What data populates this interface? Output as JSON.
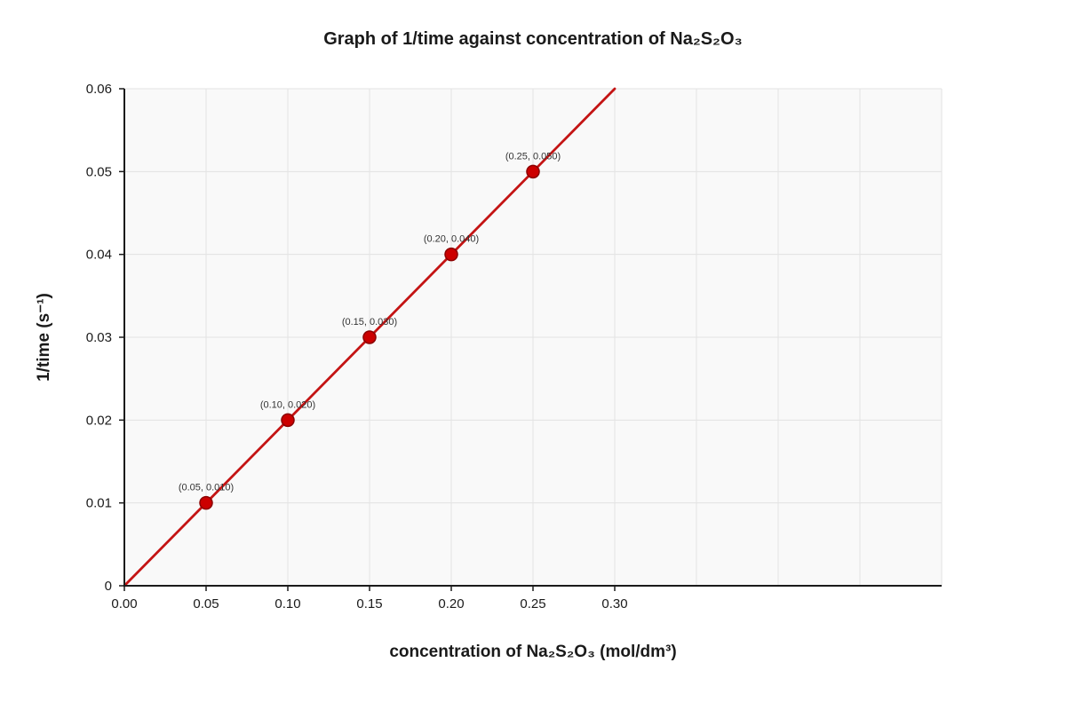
{
  "chart_data": {
    "type": "scatter",
    "title": "Graph of 1/time against concentration of Na₂S₂O₃",
    "xlabel": "concentration of Na₂S₂O₃ (mol/dm³)",
    "ylabel": "1/time (s⁻¹)",
    "xlim": [
      0,
      0.5
    ],
    "ylim": [
      0,
      0.06
    ],
    "x_ticks": [
      {
        "value": 0.0,
        "label": "0.00"
      },
      {
        "value": 0.05,
        "label": "0.05"
      },
      {
        "value": 0.1,
        "label": "0.10"
      },
      {
        "value": 0.15,
        "label": "0.15"
      },
      {
        "value": 0.2,
        "label": "0.20"
      },
      {
        "value": 0.25,
        "label": "0.25"
      },
      {
        "value": 0.3,
        "label": "0.30"
      }
    ],
    "x_gridlines": [
      0.05,
      0.1,
      0.15,
      0.2,
      0.25,
      0.3,
      0.35,
      0.4,
      0.45,
      0.5
    ],
    "y_ticks": [
      {
        "value": 0,
        "label": "0"
      },
      {
        "value": 0.01,
        "label": "0.01"
      },
      {
        "value": 0.02,
        "label": "0.02"
      },
      {
        "value": 0.03,
        "label": "0.03"
      },
      {
        "value": 0.04,
        "label": "0.04"
      },
      {
        "value": 0.05,
        "label": "0.05"
      },
      {
        "value": 0.06,
        "label": "0.06"
      }
    ],
    "grid": true,
    "points": [
      {
        "x": 0.05,
        "y": 0.01,
        "label": "(0.05, 0.010)"
      },
      {
        "x": 0.1,
        "y": 0.02,
        "label": "(0.10, 0.020)"
      },
      {
        "x": 0.15,
        "y": 0.03,
        "label": "(0.15, 0.030)"
      },
      {
        "x": 0.2,
        "y": 0.04,
        "label": "(0.20, 0.040)"
      },
      {
        "x": 0.25,
        "y": 0.05,
        "label": "(0.25, 0.050)"
      }
    ],
    "best_fit_line": {
      "x": [
        0.0,
        0.3
      ],
      "y": [
        0.0,
        0.06
      ]
    },
    "colors": {
      "line": "#c41414",
      "point_fill": "#cc0000",
      "point_stroke": "#8b0000",
      "plot_background": "#f9f9f9"
    }
  }
}
